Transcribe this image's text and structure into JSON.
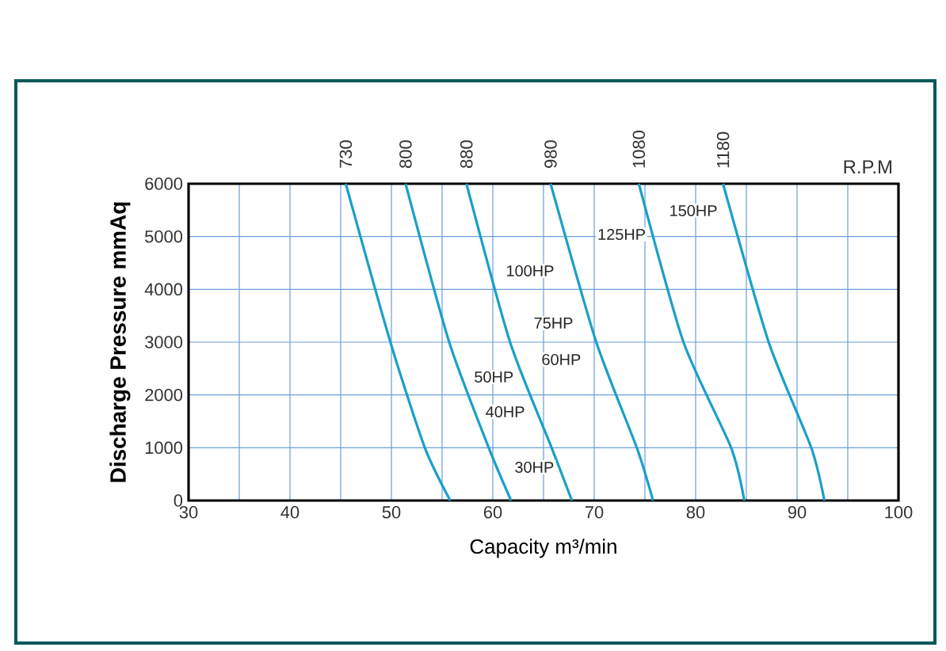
{
  "chart_data": {
    "type": "line",
    "xlabel": "Capacity  m³/min",
    "ylabel": "Discharge  Pressure  mmAq",
    "legend_title": "R.P.M",
    "xlim": [
      30,
      100
    ],
    "ylim": [
      0,
      6000
    ],
    "xticks": [
      30,
      {
        "value": 35,
        "label": null
      },
      40,
      {
        "value": 45,
        "label": null
      },
      50,
      {
        "value": 55,
        "label": null
      },
      60,
      {
        "value": 65,
        "label": null
      },
      70,
      {
        "value": 75,
        "label": null
      },
      80,
      {
        "value": 85,
        "label": null
      },
      90,
      {
        "value": 95,
        "label": null
      },
      100
    ],
    "yticks": [
      0,
      1000,
      2000,
      3000,
      4000,
      5000,
      6000
    ],
    "grid": true,
    "marker": "none",
    "line_style": "solid",
    "series": [
      {
        "name": "730",
        "color": "#1a9fc9",
        "x": [
          45.5,
          49.9,
          53.3,
          55.8
        ],
        "values": [
          6000,
          3000,
          1000,
          0
        ]
      },
      {
        "name": "800",
        "color": "#1a9fc9",
        "x": [
          51.4,
          55.7,
          59.6,
          61.8
        ],
        "values": [
          6000,
          3000,
          1000,
          0
        ]
      },
      {
        "name": "880",
        "color": "#1a9fc9",
        "x": [
          57.4,
          61.7,
          65.8,
          67.8
        ],
        "values": [
          6000,
          3000,
          1000,
          0
        ]
      },
      {
        "name": "980",
        "color": "#1a9fc9",
        "x": [
          65.7,
          70.2,
          74.2,
          75.8
        ],
        "values": [
          6000,
          3000,
          1000,
          0
        ]
      },
      {
        "name": "1080",
        "color": "#1a9fc9",
        "x": [
          74.4,
          78.8,
          83.5,
          84.8
        ],
        "values": [
          6000,
          3000,
          1000,
          0
        ]
      },
      {
        "name": "1180",
        "color": "#1a9fc9",
        "x": [
          82.7,
          87.2,
          91.4,
          92.7
        ],
        "values": [
          6000,
          3000,
          1000,
          0
        ]
      }
    ],
    "annotations": [
      "150HP",
      "125HP",
      "100HP",
      "75HP",
      "60HP",
      "50HP",
      "40HP",
      "30HP"
    ]
  }
}
